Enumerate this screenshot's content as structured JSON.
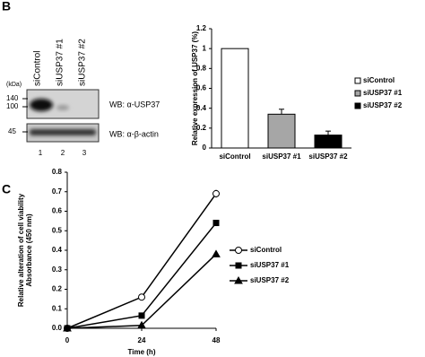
{
  "panel_labels": [
    "B",
    "C"
  ],
  "blot": {
    "kda_label": "(kDa)",
    "markers": [
      "140",
      "100",
      "45"
    ],
    "lanes": [
      "siControl",
      "siUSP37 #1",
      "siUSP37 #2"
    ],
    "lane_numbers": [
      "1",
      "2",
      "3"
    ],
    "probes": [
      "WB: α-USP37",
      "WB: α-β-actin"
    ]
  },
  "chart_data": [
    {
      "type": "bar",
      "ylabel": "Relative expression of USP37 (%)",
      "categories": [
        "siControl",
        "siUSP37 #1",
        "siUSP37 #2"
      ],
      "values": [
        1,
        0.34,
        0.13
      ],
      "errors": [
        null,
        0.05,
        0.04
      ],
      "colors": [
        "#ffffff",
        "#a6a6a6",
        "#000000"
      ],
      "ylim": [
        0,
        1.2
      ],
      "yticks": [
        0,
        0.2,
        0.4,
        0.6,
        0.8,
        1,
        1.2
      ],
      "legend": "right"
    },
    {
      "type": "line",
      "xlabel": "Time (h)",
      "ylabel": [
        "Relative alteration of cell viability",
        "Absorbance (450 nm)"
      ],
      "x": [
        0,
        24,
        48
      ],
      "xlim": [
        0,
        48
      ],
      "xticks": [
        0,
        24,
        48
      ],
      "ylim": [
        0,
        0.8
      ],
      "yticks": [
        {
          "value": 0,
          "label": "0.0"
        },
        {
          "value": 0.1,
          "label": "0.1"
        },
        {
          "value": 0.2,
          "label": "0.2"
        },
        {
          "value": 0.3,
          "label": "0.3"
        },
        {
          "value": 0.4,
          "label": "0.4"
        },
        {
          "value": 0.5,
          "label": "0.5"
        },
        {
          "value": 0.6,
          "label": "0.6"
        },
        {
          "value": 0.7,
          "label": "0.7"
        },
        {
          "value": 0.8,
          "label": "0.8"
        }
      ],
      "series": [
        {
          "name": "siControl",
          "color": "#000000",
          "marker": "circle",
          "fill": "#ffffff",
          "values": [
            0,
            0.16,
            0.69
          ],
          "errors": [
            null,
            0.015,
            0.02
          ]
        },
        {
          "name": "siUSP37 #1",
          "color": "#000000",
          "marker": "square",
          "fill": "#000000",
          "values": [
            0,
            0.065,
            0.54
          ],
          "errors": [
            null,
            0.005,
            0.01
          ]
        },
        {
          "name": "siUSP37 #2",
          "color": "#000000",
          "marker": "triangle",
          "fill": "#000000",
          "values": [
            0,
            0.015,
            0.38
          ],
          "errors": [
            null,
            0.003,
            0.01
          ]
        }
      ],
      "legend": "right"
    }
  ]
}
